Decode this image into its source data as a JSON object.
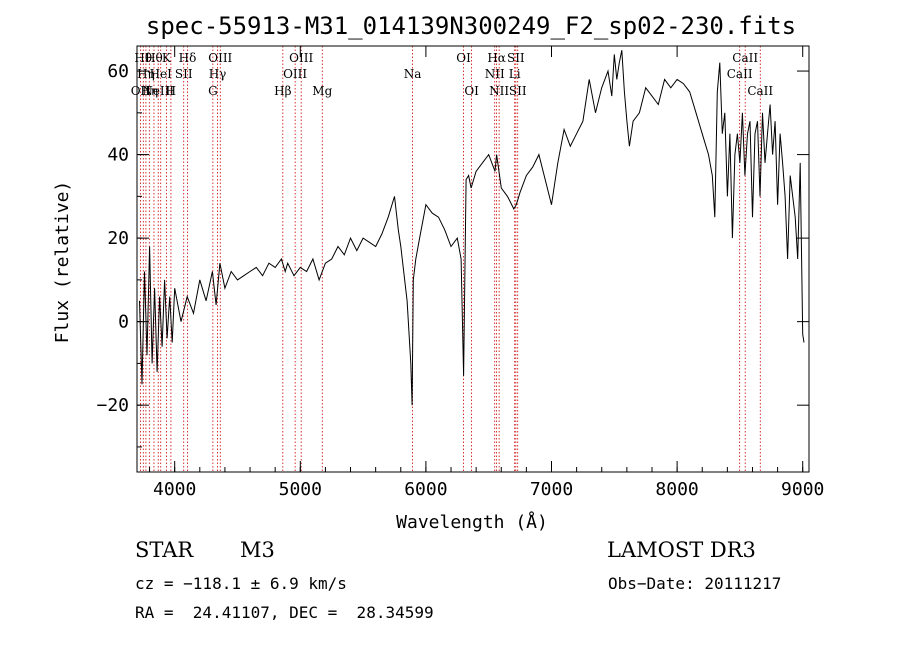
{
  "chart_data": {
    "type": "line",
    "title": "spec-55913-M31_014139N300249_F2_sp02-230.fits",
    "xlabel": "Wavelength (Å)",
    "ylabel": "Flux (relative)",
    "xlim": [
      3700,
      9050
    ],
    "ylim": [
      -36,
      66
    ],
    "xticks": [
      4000,
      5000,
      6000,
      7000,
      8000,
      9000
    ],
    "yticks": [
      -20,
      0,
      20,
      40,
      60
    ],
    "tick_labels_x": [
      "4000",
      "5000",
      "6000",
      "7000",
      "8000",
      "9000"
    ],
    "tick_labels_y": [
      "−20",
      "0",
      "20",
      "40",
      "60"
    ],
    "grid": false,
    "line_color": "#000000",
    "marker_color": "#cc0000",
    "series": [
      {
        "x": [
          3720,
          3740,
          3760,
          3780,
          3800,
          3820,
          3840,
          3860,
          3880,
          3900,
          3920,
          3940,
          3960,
          3980,
          4000,
          4050,
          4100,
          4150,
          4200,
          4250,
          4300,
          4330,
          4360,
          4400,
          4450,
          4500,
          4550,
          4600,
          4650,
          4700,
          4750,
          4800,
          4850,
          4880,
          4900,
          4950,
          5000,
          5050,
          5100,
          5150,
          5200,
          5250,
          5300,
          5350,
          5400,
          5450,
          5500,
          5550,
          5600,
          5650,
          5700,
          5750,
          5780,
          5800,
          5850,
          5880,
          5890,
          5895,
          5900,
          5920,
          5950,
          6000,
          6050,
          6100,
          6150,
          6200,
          6250,
          6280,
          6300,
          6310,
          6320,
          6340,
          6360,
          6400,
          6450,
          6500,
          6550,
          6563,
          6600,
          6650,
          6700,
          6720,
          6750,
          6800,
          6850,
          6900,
          6950,
          7000,
          7050,
          7100,
          7150,
          7200,
          7250,
          7300,
          7350,
          7400,
          7450,
          7480,
          7500,
          7520,
          7540,
          7560,
          7580,
          7600,
          7620,
          7650,
          7700,
          7750,
          7800,
          7850,
          7900,
          7950,
          8000,
          8050,
          8100,
          8150,
          8200,
          8250,
          8280,
          8300,
          8320,
          8340,
          8360,
          8380,
          8400,
          8420,
          8440,
          8460,
          8480,
          8500,
          8520,
          8540,
          8560,
          8580,
          8600,
          8620,
          8640,
          8660,
          8680,
          8700,
          8720,
          8740,
          8760,
          8780,
          8800,
          8820,
          8840,
          8860,
          8880,
          8900,
          8920,
          8940,
          8960,
          8980,
          9000,
          9010
        ],
        "y": [
          5,
          -15,
          12,
          -8,
          18,
          -10,
          8,
          -12,
          6,
          -6,
          10,
          -4,
          6,
          -5,
          8,
          0,
          6,
          2,
          10,
          5,
          12,
          4,
          14,
          8,
          12,
          10,
          11,
          12,
          13,
          11,
          14,
          13,
          15,
          12,
          14,
          11,
          13,
          12,
          15,
          10,
          14,
          15,
          18,
          16,
          20,
          17,
          20,
          19,
          18,
          21,
          25,
          30,
          22,
          18,
          5,
          -10,
          -20,
          -5,
          10,
          15,
          20,
          28,
          26,
          25,
          22,
          18,
          20,
          15,
          -13,
          10,
          34,
          35,
          32,
          36,
          38,
          40,
          36,
          40,
          32,
          30,
          27,
          28,
          31,
          35,
          37,
          40,
          34,
          28,
          38,
          46,
          42,
          45,
          48,
          58,
          50,
          56,
          60,
          54,
          64,
          58,
          62,
          65,
          55,
          48,
          42,
          48,
          50,
          56,
          54,
          52,
          58,
          56,
          58,
          57,
          55,
          50,
          45,
          40,
          35,
          25,
          55,
          62,
          45,
          50,
          30,
          45,
          20,
          40,
          45,
          38,
          50,
          35,
          45,
          48,
          25,
          45,
          48,
          30,
          50,
          38,
          45,
          52,
          40,
          48,
          28,
          45,
          38,
          30,
          15,
          35,
          30,
          25,
          15,
          38,
          -3,
          -5
        ]
      }
    ],
    "lines": [
      {
        "wl": 3727,
        "label": "OII",
        "row": 3
      },
      {
        "wl": 3750,
        "label": "Hθ",
        "row": 1
      },
      {
        "wl": 3771,
        "label": "Hη",
        "row": 2
      },
      {
        "wl": 3798,
        "label": "Hη",
        "row": 3
      },
      {
        "wl": 3835,
        "label": "Hθ",
        "row": 1
      },
      {
        "wl": 3869,
        "label": "NeIII",
        "row": 3
      },
      {
        "wl": 3889,
        "label": "HeI",
        "row": 2
      },
      {
        "wl": 3934,
        "label": "K",
        "row": 1
      },
      {
        "wl": 3970,
        "label": "H",
        "row": 3
      },
      {
        "wl": 4072,
        "label": "SII",
        "row": 2
      },
      {
        "wl": 4102,
        "label": "Hδ",
        "row": 1
      },
      {
        "wl": 4304,
        "label": "G",
        "row": 3
      },
      {
        "wl": 4341,
        "label": "Hγ",
        "row": 2
      },
      {
        "wl": 4363,
        "label": "OIII",
        "row": 1
      },
      {
        "wl": 4861,
        "label": "Hβ",
        "row": 3
      },
      {
        "wl": 4959,
        "label": "OIII",
        "row": 2
      },
      {
        "wl": 5007,
        "label": "OIII",
        "row": 1
      },
      {
        "wl": 5175,
        "label": "Mg",
        "row": 3
      },
      {
        "wl": 5894,
        "label": "Na",
        "row": 2
      },
      {
        "wl": 6300,
        "label": "OI",
        "row": 1
      },
      {
        "wl": 6364,
        "label": "OI",
        "row": 3
      },
      {
        "wl": 6548,
        "label": "NII",
        "row": 2
      },
      {
        "wl": 6563,
        "label": "Hα",
        "row": 1
      },
      {
        "wl": 6583,
        "label": "NII",
        "row": 3
      },
      {
        "wl": 6707,
        "label": "Li",
        "row": 2
      },
      {
        "wl": 6716,
        "label": "SII",
        "row": 1
      },
      {
        "wl": 6731,
        "label": "SII",
        "row": 3
      },
      {
        "wl": 8498,
        "label": "CaII",
        "row": 2
      },
      {
        "wl": 8542,
        "label": "CaII",
        "row": 1
      },
      {
        "wl": 8662,
        "label": "CaII",
        "row": 3
      }
    ]
  },
  "info": {
    "object_class": "STAR",
    "subclass": "M3",
    "survey": "LAMOST DR3",
    "cz": "cz = −118.1 ± 6.9 km/s",
    "obs_date": "Obs−Date: 20111217",
    "coords": "RA =  24.41107, DEC =  28.34599"
  }
}
